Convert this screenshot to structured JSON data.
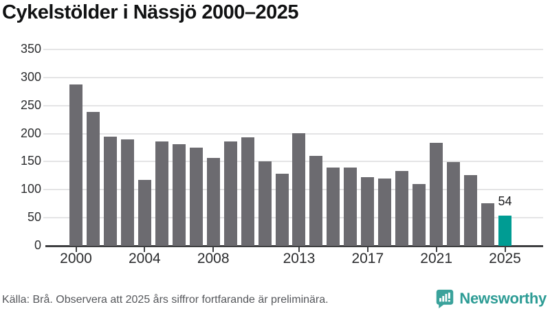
{
  "title": "Cykelstölder i Nässjö 2000–2025",
  "chart_data": {
    "type": "bar",
    "title": "Cykelstölder i Nässjö 2000–2025",
    "xlabel": "",
    "ylabel": "",
    "categories": [
      2000,
      2001,
      2002,
      2003,
      2004,
      2005,
      2006,
      2007,
      2008,
      2009,
      2010,
      2011,
      2012,
      2013,
      2014,
      2015,
      2016,
      2017,
      2018,
      2019,
      2020,
      2021,
      2022,
      2023,
      2024,
      2025
    ],
    "values": [
      288,
      239,
      195,
      190,
      118,
      186,
      181,
      175,
      157,
      186,
      193,
      150,
      129,
      201,
      160,
      139,
      140,
      122,
      120,
      133,
      110,
      183,
      149,
      126,
      76,
      54
    ],
    "ylim": [
      0,
      350
    ],
    "yticks": [
      0,
      50,
      100,
      150,
      200,
      250,
      300,
      350
    ],
    "xtick_labels": [
      "2000",
      "2004",
      "2008",
      "2013",
      "2017",
      "2021",
      "2025"
    ],
    "xtick_indices": [
      0,
      4,
      8,
      13,
      17,
      21,
      25
    ],
    "grid": "horizontal",
    "legend": "none",
    "bar_color": "#6c6b70",
    "highlight_color": "#009c93",
    "highlight_index": 25,
    "annotation": {
      "index": 25,
      "text": "54"
    }
  },
  "footer": {
    "source": "Källa: Brå. Observera att 2025 års siffror fortfarande är preliminära.",
    "brand": "Newsworthy"
  },
  "colors": {
    "brand_text": "#2d9c95",
    "brand_icon": "#3aa29b",
    "axis": "#3e3f41",
    "gridline": "#e4e4e5"
  }
}
